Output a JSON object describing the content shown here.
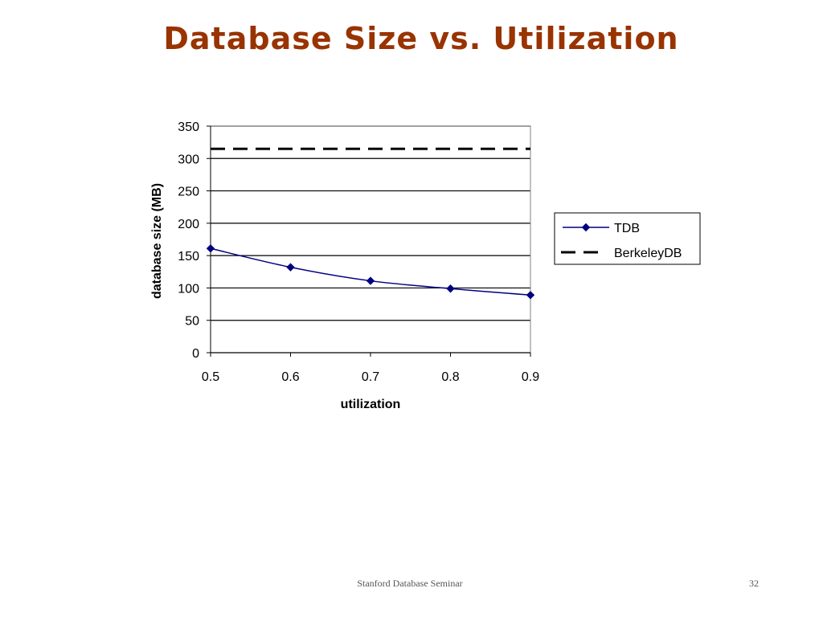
{
  "slide": {
    "title": "Database Size vs. Utilization",
    "footer": "Stanford Database Seminar",
    "page_number": "32"
  },
  "chart_data": {
    "type": "line",
    "title": "",
    "xlabel": "utilization",
    "ylabel": "database size (MB)",
    "x": [
      0.5,
      0.6,
      0.7,
      0.8,
      0.9
    ],
    "x_tick_labels": [
      "0.5",
      "0.6",
      "0.7",
      "0.8",
      "0.9"
    ],
    "xlim": [
      0.5,
      0.9
    ],
    "ylim": [
      0,
      350
    ],
    "y_ticks": [
      0,
      50,
      100,
      150,
      200,
      250,
      300,
      350
    ],
    "grid": "horizontal",
    "legend": "right",
    "series": [
      {
        "name": "TDB",
        "values": [
          161,
          132,
          111,
          99,
          89
        ],
        "color": "#000080",
        "style": "solid-diamond"
      },
      {
        "name": "BerkeleyDB",
        "values": [
          315,
          315,
          315,
          315,
          315
        ],
        "color": "#000000",
        "style": "dashed"
      }
    ]
  }
}
